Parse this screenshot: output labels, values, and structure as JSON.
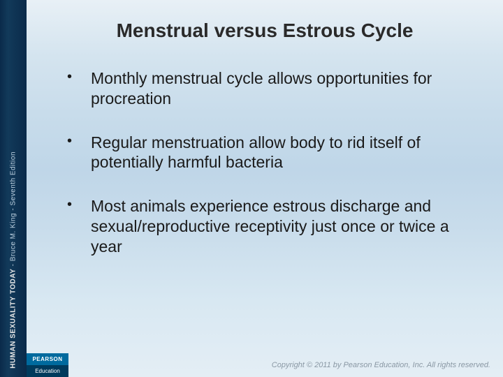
{
  "spine": {
    "main": "HUMAN SEXUALITY TODAY",
    "sub": " - Bruce M. King - Seventh Edition"
  },
  "slide": {
    "title": "Menstrual versus Estrous Cycle",
    "bullets": [
      "Monthly menstrual cycle allows opportunities for procreation",
      "Regular menstruation allow body to rid itself of potentially harmful bacteria",
      "Most animals experience estrous discharge and sexual/reproductive receptivity just once or twice a year"
    ]
  },
  "footer": {
    "logo_top": "PEARSON",
    "logo_bottom": "Education",
    "copyright": "Copyright © 2011 by Pearson Education, Inc. All rights reserved."
  },
  "colors": {
    "spine_bg": "#0a2a4a",
    "title_color": "#2a2a2a",
    "text_color": "#1a1a1a",
    "logo_top_bg": "#006a9e",
    "logo_bottom_bg": "#003a5c",
    "copyright_color": "#8a98a4"
  },
  "typography": {
    "title_fontsize": 28,
    "bullet_fontsize": 23,
    "copyright_fontsize": 11,
    "font_family": "Arial"
  }
}
